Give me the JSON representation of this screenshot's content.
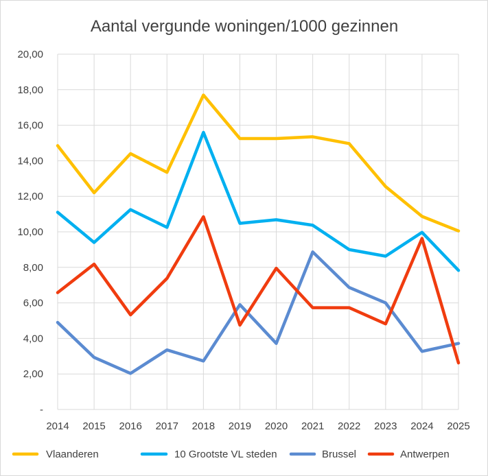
{
  "chart_data": {
    "type": "line",
    "title": "Aantal vergunde woningen/1000 gezinnen",
    "xlabel": "",
    "ylabel": "",
    "x": [
      "2014",
      "2015",
      "2016",
      "2017",
      "2018",
      "2019",
      "2020",
      "2021",
      "2022",
      "2023",
      "2024",
      "2025"
    ],
    "ylim": [
      0,
      20
    ],
    "yticks": [
      "-",
      "2,00",
      "4,00",
      "6,00",
      "8,00",
      "10,00",
      "12,00",
      "14,00",
      "16,00",
      "18,00",
      "20,00"
    ],
    "grid": true,
    "legend_position": "bottom",
    "series": [
      {
        "name": "Vlaanderen",
        "color": "#FFC000",
        "values": [
          14.85,
          12.2,
          14.4,
          13.35,
          17.7,
          15.25,
          15.25,
          15.35,
          14.97,
          12.55,
          10.87,
          10.05
        ]
      },
      {
        "name": "10 Grootste VL steden",
        "color": "#00B0F0",
        "values": [
          11.1,
          9.4,
          11.25,
          10.25,
          15.6,
          10.48,
          10.68,
          10.37,
          9.0,
          8.63,
          9.97,
          7.83
        ]
      },
      {
        "name": "Brussel",
        "color": "#5B8BD1",
        "values": [
          4.9,
          2.93,
          2.03,
          3.35,
          2.73,
          5.9,
          3.72,
          8.87,
          6.87,
          6.0,
          3.27,
          3.72
        ]
      },
      {
        "name": "Antwerpen",
        "color": "#F03C0F",
        "values": [
          6.58,
          8.18,
          5.33,
          7.38,
          10.85,
          4.75,
          7.95,
          5.73,
          5.73,
          4.82,
          9.63,
          2.62
        ]
      }
    ]
  }
}
